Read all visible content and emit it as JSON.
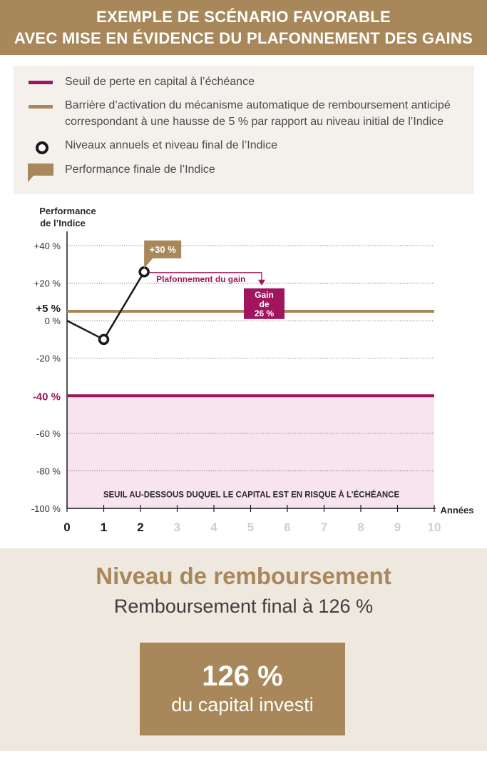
{
  "header": {
    "line1": "EXEMPLE DE SCÉNARIO FAVORABLE",
    "line2": "AVEC MISE EN ÉVIDENCE DU PLAFONNEMENT DES GAINS"
  },
  "legend": {
    "items": [
      {
        "label": "Seuil de perte en capital à l’échéance"
      },
      {
        "label_line1": "Barrière d’activation du mécanisme automatique de remboursement anticipé",
        "label_line2": "correspondant à une hausse de 5 % par rapport au niveau initial de l’Indice"
      },
      {
        "label": "Niveaux annuels et niveau final de l’Indice"
      },
      {
        "label": "Performance finale de l’Indice"
      }
    ]
  },
  "colors": {
    "gold": "#a8885a",
    "magenta": "#a0155e",
    "risk_zone": "#f7e4ee",
    "line": "#1a1a1a"
  },
  "chart_data": {
    "type": "line",
    "ylabel_line1": "Performance",
    "ylabel_line2": "de l’Indice",
    "xlabel": "Années",
    "ylim": [
      -100,
      40
    ],
    "xlim": [
      0,
      10
    ],
    "y_ticks": [
      40,
      20,
      0,
      -20,
      -40,
      -60,
      -80,
      -100
    ],
    "y_tick_labels": [
      "+40 %",
      "+20 %",
      "0 %",
      "-20 %",
      "-40 %",
      "-60 %",
      "-80 %",
      "-100 %"
    ],
    "x_ticks": [
      0,
      1,
      2,
      3,
      4,
      5,
      6,
      7,
      8,
      9,
      10
    ],
    "x_tick_labels": [
      "0",
      "1",
      "2",
      "3",
      "4",
      "5",
      "6",
      "7",
      "8",
      "9",
      "10"
    ],
    "x_active_until": 2,
    "series": [
      {
        "x": [
          0,
          1,
          2.1
        ],
        "values": [
          0,
          -10,
          26
        ]
      }
    ],
    "barrier_value": 5,
    "barrier_label": "+5 %",
    "threshold_value": -40,
    "threshold_label": "-40 %",
    "annotations": {
      "peak_badge": "+30 %",
      "cap_label": "Plafonnement du gain",
      "gain_box_line1": "Gain",
      "gain_box_line2": "de",
      "gain_box_line3": "26 %",
      "risk_zone_label": "SEUIL AU-DESSOUS DUQUEL LE CAPITAL EST EN RISQUE À L’ÉCHÉANCE"
    }
  },
  "bottom": {
    "title": "Niveau de remboursement",
    "subtitle": "Remboursement final à 126 %",
    "box_value": "126 %",
    "box_caption": "du capital investi"
  }
}
